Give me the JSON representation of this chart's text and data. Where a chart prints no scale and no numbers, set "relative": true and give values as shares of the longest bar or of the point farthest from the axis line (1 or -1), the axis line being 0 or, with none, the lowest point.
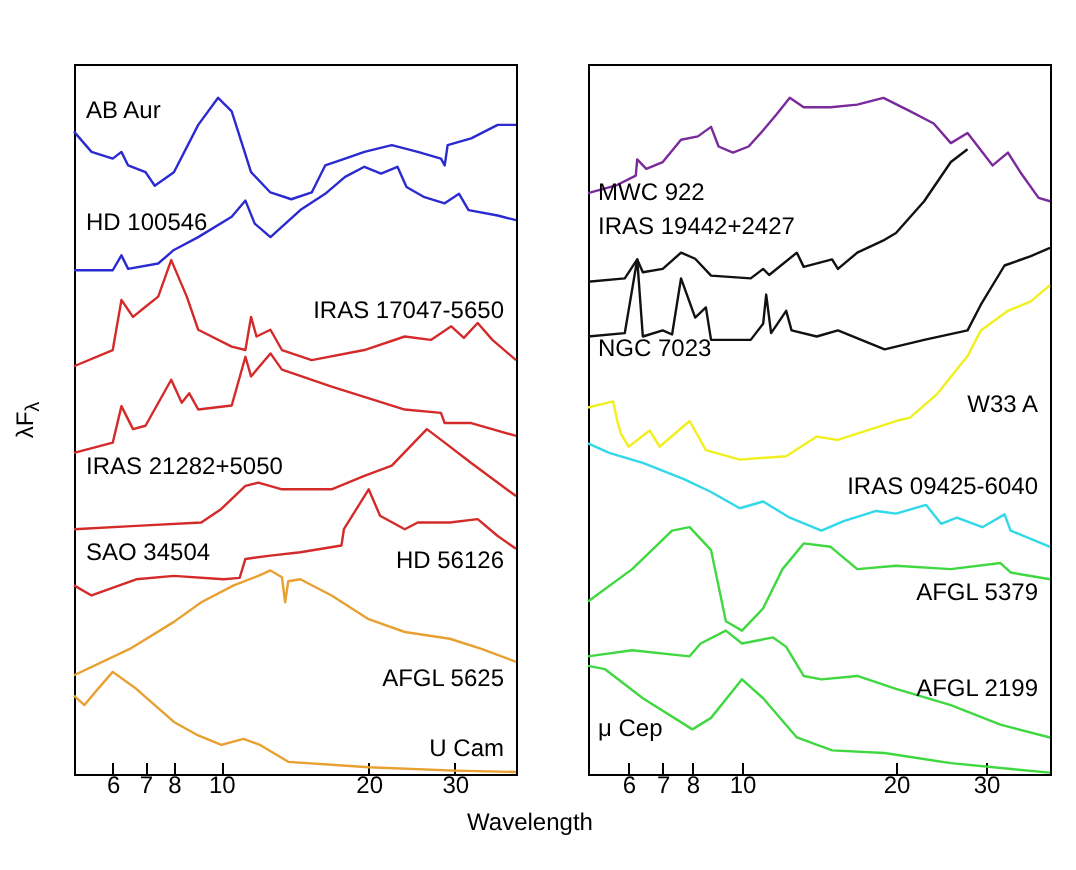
{
  "chart_data": [
    {
      "type": "line",
      "relative": true,
      "log": "x",
      "xlabel": "Wavelength",
      "ylabel": "λF$_{λ}$",
      "xlim": [
        5,
        40
      ],
      "xticks": [
        6,
        7,
        8,
        10,
        20,
        30
      ],
      "series": [
        {
          "name": "AB Aur",
          "color": "#2a2ad0",
          "x": [
            5.0,
            5.43,
            6.0,
            6.25,
            6.45,
            7.0,
            7.31,
            8.0,
            8.97,
            9.85,
            10.5,
            11.5,
            12.6,
            13.9,
            15.3,
            16.3,
            17.9,
            19.6,
            22.3,
            25.2,
            28.1,
            28.6,
            29.0,
            32.4,
            36.7,
            40
          ],
          "values": [
            0.95,
            0.92,
            0.91,
            0.92,
            0.9,
            0.89,
            0.87,
            0.89,
            0.96,
            1.0,
            0.98,
            0.89,
            0.86,
            0.85,
            0.86,
            0.9,
            0.91,
            0.92,
            0.93,
            0.92,
            0.91,
            0.9,
            0.93,
            0.94,
            0.96,
            0.96
          ]
        },
        {
          "name": "HD 100546",
          "color": "#2a2ad0",
          "x": [
            5.0,
            6.0,
            6.25,
            6.45,
            7.43,
            8.0,
            8.97,
            10.5,
            11.2,
            11.7,
            12.6,
            14.5,
            16.3,
            17.9,
            19.6,
            21.2,
            22.9,
            23.9,
            26.0,
            28.6,
            30.6,
            32.0,
            36.7,
            40
          ],
          "values": [
            0.745,
            0.745,
            0.767,
            0.747,
            0.755,
            0.775,
            0.794,
            0.824,
            0.848,
            0.814,
            0.794,
            0.834,
            0.858,
            0.883,
            0.898,
            0.888,
            0.898,
            0.868,
            0.853,
            0.844,
            0.858,
            0.834,
            0.826,
            0.819
          ]
        },
        {
          "name": "IRAS 17047-5650",
          "color": "#d42a2a",
          "x": [
            5.0,
            6.0,
            6.25,
            6.6,
            7.0,
            7.43,
            7.9,
            8.5,
            8.97,
            10.5,
            11.2,
            11.5,
            11.8,
            12.6,
            13.3,
            15.3,
            19.6,
            23.7,
            26.8,
            29.5,
            31.3,
            33.4,
            35.8,
            40
          ],
          "values": [
            0.603,
            0.627,
            0.701,
            0.676,
            0.691,
            0.706,
            0.76,
            0.706,
            0.657,
            0.632,
            0.627,
            0.676,
            0.647,
            0.657,
            0.627,
            0.612,
            0.627,
            0.647,
            0.642,
            0.662,
            0.645,
            0.667,
            0.642,
            0.612
          ]
        },
        {
          "name": "IRAS 21282+5050",
          "color": "#d42a2a",
          "x": [
            5.0,
            6.0,
            6.25,
            6.6,
            7.0,
            7.9,
            8.3,
            8.6,
            8.97,
            10.5,
            11.2,
            11.5,
            12.6,
            13.3,
            16.8,
            23.7,
            28.1,
            28.6,
            32.4,
            40
          ],
          "values": [
            0.475,
            0.49,
            0.544,
            0.51,
            0.515,
            0.583,
            0.549,
            0.563,
            0.539,
            0.545,
            0.617,
            0.588,
            0.622,
            0.598,
            0.573,
            0.539,
            0.534,
            0.519,
            0.519,
            0.5
          ]
        },
        {
          "name": "SAO 34504",
          "color": "#d42a2a",
          "x": [
            5.0,
            6.7,
            9.1,
            10.0,
            11.2,
            11.9,
            13.3,
            16.8,
            19.6,
            22.3,
            26.3,
            28.6,
            32.4,
            40
          ],
          "values": [
            0.362,
            0.367,
            0.372,
            0.392,
            0.426,
            0.431,
            0.421,
            0.421,
            0.441,
            0.456,
            0.51,
            0.49,
            0.46,
            0.411
          ]
        },
        {
          "name": "HD 56126",
          "color": "#d42a2a",
          "x": [
            5.0,
            5.43,
            6.7,
            8.0,
            10.1,
            10.9,
            11.2,
            12.6,
            14.5,
            17.6,
            17.8,
            20.0,
            21.1,
            23.7,
            25.2,
            29.3,
            33.4,
            36.7,
            40
          ],
          "values": [
            0.279,
            0.264,
            0.288,
            0.293,
            0.288,
            0.29,
            0.318,
            0.323,
            0.328,
            0.338,
            0.362,
            0.421,
            0.382,
            0.362,
            0.372,
            0.372,
            0.377,
            0.352,
            0.333
          ]
        },
        {
          "name": "AFGL 5625",
          "color": "#e8a030",
          "x": [
            5.0,
            6.5,
            8.0,
            9.1,
            10.6,
            11.9,
            12.6,
            13.3,
            13.5,
            13.7,
            14.5,
            16.8,
            20.0,
            23.7,
            29.3,
            34.0,
            40
          ],
          "values": [
            0.146,
            0.185,
            0.225,
            0.254,
            0.279,
            0.293,
            0.301,
            0.291,
            0.254,
            0.285,
            0.288,
            0.264,
            0.229,
            0.21,
            0.2,
            0.185,
            0.166
          ]
        },
        {
          "name": "U Cam",
          "color": "#e8a030",
          "x": [
            5.0,
            5.25,
            5.6,
            6.0,
            6.7,
            8.0,
            8.97,
            10.0,
            11.1,
            12.0,
            13.7,
            20.0,
            30,
            40
          ],
          "values": [
            0.116,
            0.102,
            0.126,
            0.151,
            0.126,
            0.077,
            0.057,
            0.043,
            0.052,
            0.043,
            0.018,
            0.01,
            0.005,
            0.003
          ]
        }
      ]
    },
    {
      "type": "line",
      "relative": true,
      "log": "x",
      "xlim": [
        5,
        40
      ],
      "xticks": [
        6,
        7,
        8,
        10,
        20,
        30
      ],
      "series": [
        {
          "name": "MWC 922",
          "color": "#7a2a9a",
          "x": [
            5.0,
            5.7,
            6.2,
            6.24,
            6.5,
            7.0,
            7.6,
            8.2,
            8.7,
            9.0,
            9.6,
            10.3,
            11.0,
            11.7,
            12.4,
            13.2,
            14.9,
            16.8,
            18.9,
            21.2,
            23.7,
            25.6,
            27.6,
            30.9,
            33.1,
            35.0,
            38.0,
            40
          ],
          "values": [
            0.859,
            0.871,
            0.885,
            0.909,
            0.895,
            0.905,
            0.938,
            0.943,
            0.957,
            0.928,
            0.919,
            0.928,
            0.952,
            0.976,
            1.0,
            0.986,
            0.986,
            0.99,
            1.0,
            0.981,
            0.962,
            0.933,
            0.948,
            0.9,
            0.919,
            0.89,
            0.852,
            0.847
          ]
        },
        {
          "name": "IRAS 19442+2427",
          "color": "#111111",
          "x": [
            5.0,
            5.9,
            6.24,
            6.4,
            7.0,
            7.6,
            8.1,
            8.7,
            10.4,
            11.0,
            11.3,
            12.8,
            13.2,
            15.0,
            15.4,
            16.8,
            19.0,
            20.0,
            22.7,
            25.6,
            27.6
          ],
          "values": [
            0.728,
            0.733,
            0.761,
            0.742,
            0.747,
            0.771,
            0.762,
            0.737,
            0.733,
            0.747,
            0.738,
            0.771,
            0.75,
            0.761,
            0.747,
            0.771,
            0.79,
            0.8,
            0.847,
            0.905,
            0.924
          ]
        },
        {
          "name": "NGC 7023",
          "color": "#111111",
          "x": [
            5.0,
            5.9,
            6.24,
            6.4,
            7.0,
            7.3,
            7.6,
            8.1,
            8.5,
            8.7,
            10.4,
            11.0,
            11.15,
            11.4,
            12.2,
            12.5,
            14.0,
            15.4,
            19.0,
            22.7,
            27.6,
            29.3,
            32.6,
            36.7,
            40
          ],
          "values": [
            0.647,
            0.652,
            0.761,
            0.647,
            0.656,
            0.65,
            0.733,
            0.675,
            0.69,
            0.642,
            0.642,
            0.666,
            0.709,
            0.652,
            0.685,
            0.656,
            0.647,
            0.656,
            0.628,
            0.642,
            0.656,
            0.694,
            0.752,
            0.766,
            0.778
          ]
        },
        {
          "name": "W33 A",
          "color": "#f0f020",
          "x": [
            5.0,
            5.6,
            5.7,
            5.8,
            6.0,
            6.6,
            6.9,
            7.9,
            8.5,
            9.9,
            12.2,
            14.0,
            15.4,
            20.0,
            21.3,
            24.0,
            27.6,
            29.3,
            33.1,
            36.7,
            40
          ],
          "values": [
            0.542,
            0.551,
            0.523,
            0.503,
            0.484,
            0.508,
            0.484,
            0.522,
            0.479,
            0.465,
            0.47,
            0.499,
            0.494,
            0.522,
            0.527,
            0.561,
            0.618,
            0.656,
            0.685,
            0.699,
            0.723
          ]
        },
        {
          "name": "IRAS 09425-6040",
          "color": "#30d8e8",
          "x": [
            5.0,
            5.5,
            6.4,
            7.7,
            8.7,
            9.9,
            11.0,
            12.4,
            14.3,
            15.8,
            18.3,
            20.0,
            22.9,
            24.5,
            26.3,
            29.5,
            32.6,
            33.5,
            40
          ],
          "values": [
            0.489,
            0.475,
            0.46,
            0.436,
            0.417,
            0.393,
            0.403,
            0.379,
            0.36,
            0.374,
            0.389,
            0.385,
            0.398,
            0.37,
            0.379,
            0.365,
            0.384,
            0.36,
            0.336
          ]
        },
        {
          "name": "AFGL 5379",
          "color": "#40d840",
          "x": [
            5.0,
            6.1,
            7.3,
            7.9,
            8.7,
            9.3,
            10.0,
            11.0,
            12.0,
            13.2,
            14.9,
            16.8,
            20.0,
            25.6,
            32.0,
            33.5,
            40
          ],
          "values": [
            0.255,
            0.303,
            0.36,
            0.365,
            0.331,
            0.226,
            0.212,
            0.245,
            0.303,
            0.341,
            0.336,
            0.303,
            0.308,
            0.303,
            0.312,
            0.298,
            0.288
          ]
        },
        {
          "name": "AFGL 2199",
          "color": "#40d840",
          "x": [
            5.0,
            6.1,
            7.9,
            8.3,
            9.3,
            10.0,
            11.5,
            12.2,
            13.2,
            14.3,
            16.8,
            20.0,
            25.6,
            32.0,
            40
          ],
          "values": [
            0.174,
            0.183,
            0.174,
            0.193,
            0.212,
            0.193,
            0.202,
            0.188,
            0.145,
            0.14,
            0.145,
            0.126,
            0.102,
            0.073,
            0.054
          ]
        },
        {
          "name": "μ Cep",
          "color": "#40d840",
          "x": [
            5.0,
            5.4,
            6.4,
            8.0,
            8.7,
            10.0,
            11.0,
            12.8,
            15.0,
            19.0,
            25.6,
            34.0,
            40
          ],
          "values": [
            0.16,
            0.155,
            0.112,
            0.066,
            0.083,
            0.14,
            0.112,
            0.054,
            0.035,
            0.031,
            0.016,
            0.007,
            0.002
          ]
        }
      ]
    }
  ]
}
